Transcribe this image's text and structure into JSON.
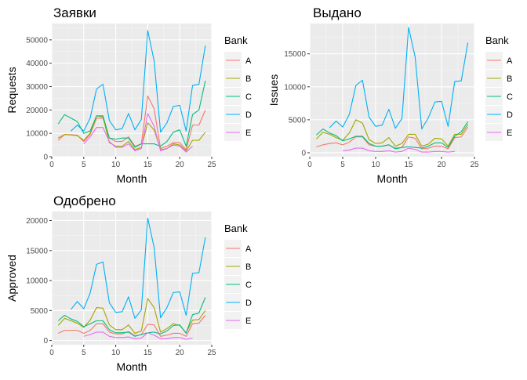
{
  "figure": {
    "months": [
      1,
      2,
      3,
      4,
      5,
      6,
      7,
      8,
      9,
      10,
      11,
      12,
      13,
      14,
      15,
      16,
      17,
      18,
      19,
      20,
      21,
      22,
      23,
      24
    ],
    "legend_title": "Bank",
    "colors": {
      "A": "#F8766D",
      "B": "#A3A500",
      "C": "#00BF7D",
      "D": "#00B0F6",
      "E": "#E76BF3"
    }
  },
  "chart_data": [
    {
      "type": "line",
      "title": "Заявки",
      "xlabel": "Month",
      "ylabel": "Requests",
      "xlim": [
        0,
        25
      ],
      "ylim": [
        0,
        57000
      ],
      "xticks": [
        0,
        5,
        10,
        15,
        20,
        25
      ],
      "yticks": [
        0,
        10000,
        20000,
        30000,
        40000,
        50000
      ],
      "grid": true,
      "legend": "right",
      "series": [
        {
          "name": "A",
          "x": [
            1,
            2,
            3,
            4,
            5,
            6,
            7,
            8,
            9,
            10,
            11,
            12,
            13,
            14,
            15,
            16,
            17,
            18,
            19,
            20,
            21,
            22,
            23,
            24
          ],
          "values": [
            7000,
            9500,
            9400,
            9200,
            6500,
            9500,
            16500,
            16500,
            8000,
            6500,
            6500,
            8500,
            4500,
            5500,
            26000,
            20500,
            3500,
            4500,
            6000,
            6000,
            3000,
            13500,
            13500,
            20000
          ]
        },
        {
          "name": "B",
          "x": [
            1,
            2,
            3,
            4,
            5,
            6,
            7,
            8,
            9,
            10,
            11,
            12,
            13,
            14,
            15,
            16,
            17,
            18,
            19,
            20,
            21,
            22,
            23,
            24
          ],
          "values": [
            8000,
            9500,
            9300,
            9000,
            7000,
            10000,
            17500,
            17000,
            6000,
            4500,
            4500,
            6500,
            3000,
            4000,
            14500,
            11500,
            3000,
            3500,
            5500,
            5000,
            2500,
            7000,
            7000,
            10500
          ]
        },
        {
          "name": "C",
          "x": [
            1,
            2,
            3,
            4,
            5,
            6,
            7,
            8,
            9,
            10,
            11,
            12,
            13,
            14,
            15,
            16,
            17,
            18,
            19,
            20,
            21,
            22,
            23,
            24
          ],
          "values": [
            14000,
            18000,
            16500,
            15000,
            10000,
            11000,
            17500,
            17500,
            8000,
            7500,
            8000,
            8000,
            4000,
            5500,
            5500,
            5500,
            4500,
            6500,
            10500,
            11500,
            4500,
            18000,
            20000,
            32500
          ]
        },
        {
          "name": "D",
          "x": [
            3,
            4,
            5,
            6,
            7,
            8,
            9,
            10,
            11,
            12,
            13,
            14,
            15,
            16,
            17,
            18,
            19,
            20,
            21,
            22,
            23,
            24
          ],
          "values": [
            11000,
            13500,
            11000,
            16500,
            29000,
            31000,
            15500,
            11500,
            12000,
            18500,
            11500,
            16000,
            54000,
            41000,
            10500,
            14500,
            21500,
            22000,
            11000,
            30500,
            31000,
            47500
          ]
        },
        {
          "name": "E",
          "x": [
            5,
            6,
            7,
            8,
            9,
            10,
            11,
            12,
            13,
            14,
            15,
            16,
            17,
            18,
            19,
            20,
            21,
            22
          ],
          "values": [
            5500,
            8500,
            12500,
            12500,
            6500,
            4000,
            4000,
            5500,
            2500,
            3500,
            18500,
            13000,
            2500,
            3500,
            5000,
            4500,
            2000,
            4500
          ]
        }
      ]
    },
    {
      "type": "line",
      "title": "Выдано",
      "xlabel": "Month",
      "ylabel": "Issues",
      "xlim": [
        0,
        25
      ],
      "ylim": [
        -600,
        19600
      ],
      "xticks": [
        0,
        5,
        10,
        15,
        20,
        25
      ],
      "yticks": [
        0,
        5000,
        10000,
        15000
      ],
      "grid": true,
      "legend": "right",
      "series": [
        {
          "name": "A",
          "x": [
            1,
            2,
            3,
            4,
            5,
            6,
            7,
            8,
            9,
            10,
            11,
            12,
            13,
            14,
            15,
            16,
            17,
            18,
            19,
            20,
            21,
            22,
            23,
            24
          ],
          "values": [
            900,
            1200,
            1400,
            1500,
            1200,
            1600,
            2400,
            2400,
            1200,
            1000,
            1000,
            1200,
            700,
            800,
            2400,
            2200,
            600,
            700,
            1000,
            1000,
            600,
            2300,
            2400,
            3900
          ]
        },
        {
          "name": "B",
          "x": [
            1,
            2,
            3,
            4,
            5,
            6,
            7,
            8,
            9,
            10,
            11,
            12,
            13,
            14,
            15,
            16,
            17,
            18,
            19,
            20,
            21,
            22,
            23,
            24
          ],
          "values": [
            2100,
            3100,
            2800,
            2300,
            1900,
            3000,
            5000,
            4500,
            2000,
            1400,
            1500,
            2300,
            1000,
            1400,
            2800,
            2800,
            1000,
            1300,
            2200,
            2100,
            1000,
            2800,
            2800,
            4300
          ]
        },
        {
          "name": "C",
          "x": [
            1,
            2,
            3,
            4,
            5,
            6,
            7,
            8,
            9,
            10,
            11,
            12,
            13,
            14,
            15,
            16,
            17,
            18,
            19,
            20,
            21,
            22,
            23,
            24
          ],
          "values": [
            2700,
            3600,
            3000,
            2600,
            1800,
            2100,
            2500,
            2500,
            1400,
            1000,
            1000,
            1200,
            600,
            800,
            900,
            800,
            700,
            1000,
            1500,
            1500,
            800,
            2500,
            3200,
            4700
          ]
        },
        {
          "name": "D",
          "x": [
            3,
            4,
            5,
            6,
            7,
            8,
            9,
            10,
            11,
            12,
            13,
            14,
            15,
            16,
            17,
            18,
            19,
            20,
            21,
            22,
            23,
            24
          ],
          "values": [
            3800,
            4800,
            3900,
            5800,
            10200,
            11000,
            5400,
            4000,
            4200,
            6600,
            3700,
            5200,
            19000,
            14500,
            3600,
            5300,
            7700,
            7800,
            4000,
            10800,
            10900,
            16700
          ]
        },
        {
          "name": "E",
          "x": [
            5,
            6,
            7,
            8,
            9,
            10,
            11,
            12,
            13,
            14,
            15,
            16,
            17,
            18,
            19,
            20,
            21,
            22
          ],
          "values": [
            300,
            400,
            700,
            700,
            300,
            200,
            200,
            300,
            100,
            200,
            700,
            500,
            100,
            100,
            200,
            200,
            100,
            200
          ]
        }
      ]
    },
    {
      "type": "line",
      "title": "Одобрено",
      "xlabel": "Month",
      "ylabel": "Approved",
      "xlim": [
        0,
        25
      ],
      "ylim": [
        -700,
        21500
      ],
      "xticks": [
        0,
        5,
        10,
        15,
        20,
        25
      ],
      "yticks": [
        0,
        5000,
        10000,
        15000,
        20000
      ],
      "grid": true,
      "legend": "right",
      "series": [
        {
          "name": "A",
          "x": [
            1,
            2,
            3,
            4,
            5,
            6,
            7,
            8,
            9,
            10,
            11,
            12,
            13,
            14,
            15,
            16,
            17,
            18,
            19,
            20,
            21,
            22,
            23,
            24
          ],
          "values": [
            1200,
            1700,
            1700,
            1700,
            1200,
            1700,
            2800,
            2800,
            1400,
            1100,
            1100,
            1500,
            800,
            1000,
            2700,
            2600,
            700,
            900,
            1200,
            1200,
            700,
            2800,
            2900,
            4200
          ]
        },
        {
          "name": "B",
          "x": [
            1,
            2,
            3,
            4,
            5,
            6,
            7,
            8,
            9,
            10,
            11,
            12,
            13,
            14,
            15,
            16,
            17,
            18,
            19,
            20,
            21,
            22,
            23,
            24
          ],
          "values": [
            2500,
            3700,
            3300,
            2900,
            2200,
            3400,
            5500,
            5400,
            2600,
            1800,
            1800,
            2600,
            1200,
            1600,
            7000,
            5500,
            1400,
            2000,
            2800,
            2500,
            1300,
            3400,
            3500,
            5000
          ]
        },
        {
          "name": "C",
          "x": [
            1,
            2,
            3,
            4,
            5,
            6,
            7,
            8,
            9,
            10,
            11,
            12,
            13,
            14,
            15,
            16,
            17,
            18,
            19,
            20,
            21,
            22,
            23,
            24
          ],
          "values": [
            3300,
            4200,
            3600,
            3200,
            2300,
            2800,
            3300,
            3300,
            1800,
            1300,
            1300,
            1400,
            700,
            1000,
            1300,
            1400,
            1100,
            1600,
            2500,
            2600,
            1200,
            4300,
            4600,
            7200
          ]
        },
        {
          "name": "D",
          "x": [
            3,
            4,
            5,
            6,
            7,
            8,
            9,
            10,
            11,
            12,
            13,
            14,
            15,
            16,
            17,
            18,
            19,
            20,
            21,
            22,
            23,
            24
          ],
          "values": [
            5200,
            6500,
            5300,
            7900,
            12700,
            13100,
            6300,
            4700,
            4800,
            7300,
            3700,
            5100,
            20400,
            15500,
            3800,
            5500,
            8000,
            8100,
            4200,
            11200,
            11300,
            17200
          ]
        },
        {
          "name": "E",
          "x": [
            5,
            6,
            7,
            8,
            9,
            10,
            11,
            12,
            13,
            14,
            15,
            16,
            17,
            18,
            19,
            20,
            21,
            22
          ],
          "values": [
            700,
            1000,
            1400,
            1400,
            700,
            500,
            500,
            600,
            300,
            400,
            1300,
            900,
            300,
            300,
            500,
            500,
            200,
            400
          ]
        }
      ]
    }
  ]
}
